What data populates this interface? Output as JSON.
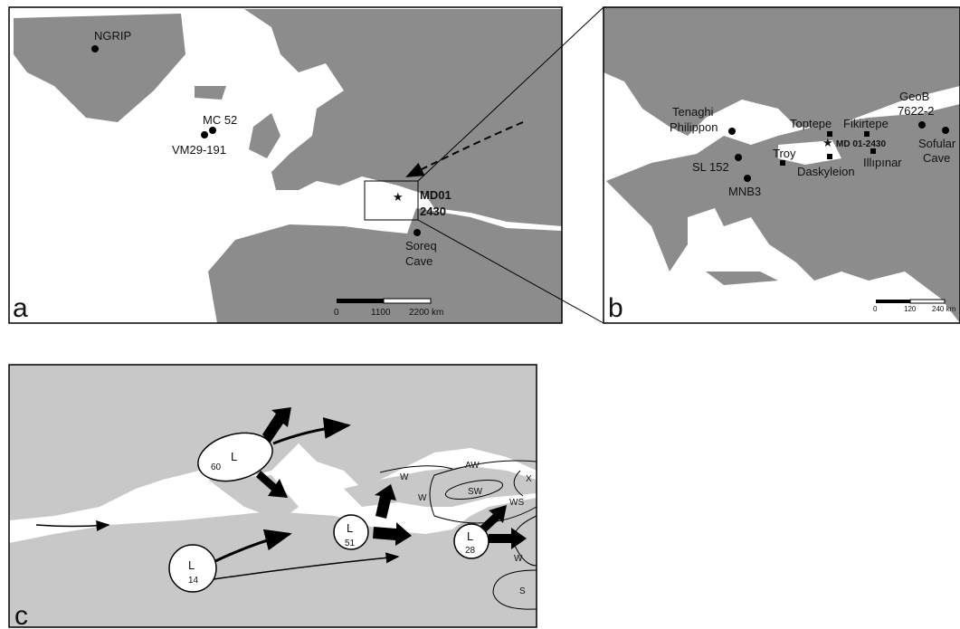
{
  "panel_a": {
    "label": "a",
    "sites": {
      "ngrip": "NGRIP",
      "mc52": "MC 52",
      "vm29": "VM29-191",
      "md01": [
        "MD01",
        "2430"
      ],
      "soreq": [
        "Soreq",
        "Cave"
      ]
    },
    "scale": [
      "0",
      "1100",
      "2200 km"
    ]
  },
  "panel_b": {
    "label": "b",
    "sites": {
      "tenaghi": [
        "Tenaghi",
        "Philippon"
      ],
      "sl152": "SL 152",
      "mnb3": "MNB3",
      "toptepe": "Toptepe",
      "fikirtepe": "Fikirtepe",
      "md01": "MD 01-2430",
      "troy": "Troy",
      "daskyleion": "Daskyleion",
      "ilipinar": "Illıpınar",
      "geob": [
        "GeoB",
        "7622-2"
      ],
      "sofular": [
        "Sofular",
        "Cave"
      ]
    },
    "scale": [
      "0",
      "120",
      "240 km"
    ]
  },
  "panel_c": {
    "label": "c",
    "lows": [
      {
        "name": "L",
        "value": "60"
      },
      {
        "name": "L",
        "value": "14"
      },
      {
        "name": "L",
        "value": "51"
      },
      {
        "name": "L",
        "value": "28"
      }
    ],
    "regions": [
      "AW",
      "W",
      "W",
      "SW",
      "WS",
      "W",
      "X",
      "S"
    ]
  }
}
